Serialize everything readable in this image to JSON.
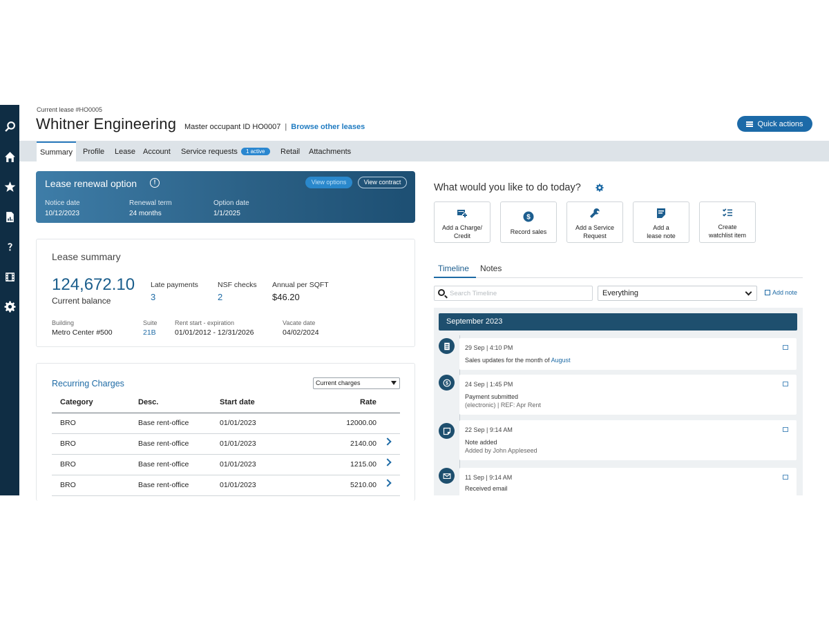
{
  "header": {
    "crumb": "Current lease #HO0005",
    "title": "Whitner Engineering",
    "master_occupant": "Master occupant ID HO0007",
    "separator": "|",
    "browse_link": "Browse other leases",
    "quick_actions": "Quick actions"
  },
  "tabs": [
    {
      "label": "Summary"
    },
    {
      "label": "Profile"
    },
    {
      "label": "Lease"
    },
    {
      "label": "Account"
    },
    {
      "label": "Service requests",
      "badge": "1 active"
    },
    {
      "label": "Retail"
    },
    {
      "label": "Attachments"
    }
  ],
  "renewal": {
    "title": "Lease renewal option",
    "btn_primary": "View options",
    "btn_contract": "View contract",
    "notice_label": "Notice date",
    "notice_value": "10/12/2023",
    "term_label": "Renewal term",
    "term_value": "24 months",
    "option_label": "Option date",
    "option_value": "1/1/2025"
  },
  "summary": {
    "title": "Lease summary",
    "balance": "124,672.10",
    "balance_label": "Current balance",
    "late_label": "Late payments",
    "late_value": "3",
    "nsf_label": "NSF checks",
    "nsf_value": "2",
    "sqft_label": "Annual per SQFT",
    "sqft_value": "$46.20",
    "building_label": "Building",
    "building_value": "Metro Center #500",
    "suite_label": "Suite",
    "suite_value": "21B",
    "rent_label": "Rent start - expiration",
    "rent_value": "01/01/2012 - 12/31/2026",
    "vacate_label": "Vacate date",
    "vacate_value": "04/02/2024"
  },
  "charges": {
    "title": "Recurring Charges",
    "filter": "Current charges",
    "columns": [
      "Category",
      "Desc.",
      "Start date",
      "Rate"
    ],
    "rows": [
      {
        "category": "BRO",
        "desc": "Base rent-office",
        "start": "01/01/2023",
        "rate": "12000.00"
      },
      {
        "category": "BRO",
        "desc": "Base rent-office",
        "start": "01/01/2023",
        "rate": "2140.00"
      },
      {
        "category": "BRO",
        "desc": "Base rent-office",
        "start": "01/01/2023",
        "rate": "1215.00"
      },
      {
        "category": "BRO",
        "desc": "Base rent-office",
        "start": "01/01/2023",
        "rate": "5210.00"
      }
    ]
  },
  "todo": {
    "title": "What would you like to do today?",
    "actions": [
      {
        "label1": "Add a Charge/",
        "label2": "Credit",
        "icon": "card-plus-icon"
      },
      {
        "label1": "Record sales",
        "label2": "",
        "icon": "dollar-circle-icon"
      },
      {
        "label1": "Add a Service",
        "label2": "Request",
        "icon": "wrench-icon"
      },
      {
        "label1": "Add a",
        "label2": "lease note",
        "icon": "note-icon"
      },
      {
        "label1": "Create",
        "label2": "watchlist item",
        "icon": "checklist-icon"
      }
    ]
  },
  "timeline": {
    "tabs": [
      "Timeline",
      "Notes"
    ],
    "search_placeholder": "Search Timeline",
    "filter": "Everything",
    "add_note": "Add note",
    "month": "September 2023",
    "entries": [
      {
        "when": "29 Sep  |  4:10 PM",
        "text": "Sales updates for the month of ",
        "link": "August",
        "sub": "",
        "icon": "document-icon"
      },
      {
        "when": "24 Sep  |  1:45 PM",
        "text": "Payment submitted",
        "link": "",
        "sub": "(electronic)  |  REF: Apr Rent",
        "icon": "dollar-icon"
      },
      {
        "when": "22 Sep  |  9:14 AM",
        "text": "Note added",
        "link": "",
        "sub": "Added by John Appleseed",
        "icon": "sticky-note-icon"
      },
      {
        "when": "11 Sep  |  9:14 AM",
        "text": "Received email",
        "link": "",
        "sub": "",
        "icon": "mail-icon"
      }
    ]
  },
  "colors": {
    "rail": "#0f2d44",
    "accent": "#1d6aa5",
    "renewal_card": "#2a5f84",
    "month_bar": "#1e4f6e"
  }
}
